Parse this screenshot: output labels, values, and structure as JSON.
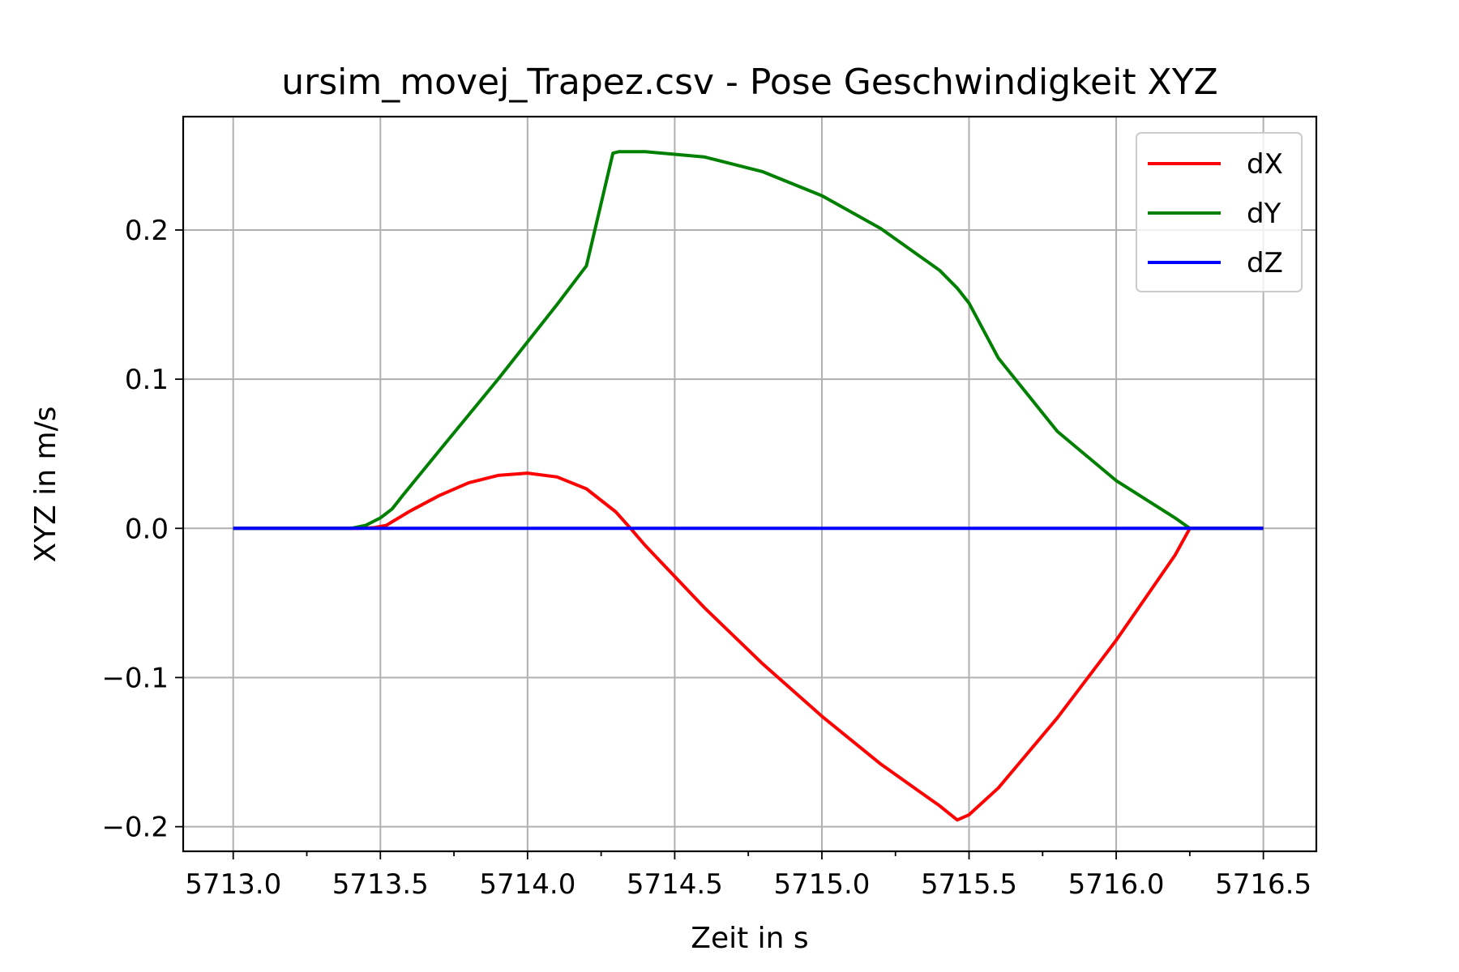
{
  "chart_data": {
    "type": "line",
    "title": "ursim_movej_Trapez.csv - Pose Geschwindigkeit XYZ",
    "xlabel": "Zeit in s",
    "ylabel": "XYZ in m/s",
    "xlim": [
      5712.83,
      5716.68
    ],
    "ylim": [
      -0.2165,
      0.276
    ],
    "xticks": [
      5713.0,
      5713.5,
      5714.0,
      5714.5,
      5715.0,
      5715.5,
      5716.0,
      5716.5
    ],
    "xtick_labels": [
      "5713.0",
      "5713.5",
      "5714.0",
      "5714.5",
      "5715.0",
      "5715.5",
      "5716.0",
      "5716.5"
    ],
    "xminor": [
      5713.25,
      5713.75,
      5714.25,
      5714.75,
      5715.25,
      5715.75,
      5716.25
    ],
    "yticks": [
      -0.2,
      -0.1,
      0.0,
      0.1,
      0.2
    ],
    "ytick_labels": [
      "−0.2",
      "−0.1",
      "0.0",
      "0.1",
      "0.2"
    ],
    "grid": true,
    "legend_position": "top-right",
    "series": [
      {
        "name": "dX",
        "color": "#ff0000",
        "x": [
          5713.0,
          5713.43,
          5713.48,
          5713.52,
          5713.6,
          5713.7,
          5713.8,
          5713.9,
          5714.0,
          5714.1,
          5714.2,
          5714.3,
          5714.35,
          5714.4,
          5714.6,
          5714.8,
          5715.0,
          5715.2,
          5715.4,
          5715.46,
          5715.5,
          5715.6,
          5715.8,
          5716.0,
          5716.2,
          5716.25,
          5716.5
        ],
        "values": [
          0.0,
          0.0,
          0.0005,
          0.002,
          0.0115,
          0.022,
          0.0305,
          0.0355,
          0.037,
          0.0345,
          0.0265,
          0.011,
          0.0,
          -0.0115,
          -0.053,
          -0.091,
          -0.126,
          -0.158,
          -0.186,
          -0.1955,
          -0.192,
          -0.174,
          -0.127,
          -0.075,
          -0.018,
          0.0,
          0.0
        ]
      },
      {
        "name": "dY",
        "color": "#008000",
        "x": [
          5713.0,
          5713.4,
          5713.45,
          5713.5,
          5713.54,
          5713.58,
          5713.7,
          5713.9,
          5714.1,
          5714.2,
          5714.29,
          5714.31,
          5714.4,
          5714.6,
          5714.8,
          5715.0,
          5715.2,
          5715.4,
          5715.46,
          5715.5,
          5715.6,
          5715.8,
          5716.0,
          5716.2,
          5716.25,
          5716.5
        ],
        "values": [
          0.0,
          0.0,
          0.002,
          0.007,
          0.013,
          0.023,
          0.052,
          0.1,
          0.15,
          0.176,
          0.2515,
          0.2525,
          0.2525,
          0.249,
          0.239,
          0.223,
          0.201,
          0.173,
          0.161,
          0.151,
          0.114,
          0.065,
          0.032,
          0.007,
          0.0,
          0.0
        ]
      },
      {
        "name": "dZ",
        "color": "#0000ff",
        "x": [
          5713.0,
          5716.5
        ],
        "values": [
          0.0,
          0.0
        ]
      }
    ]
  }
}
